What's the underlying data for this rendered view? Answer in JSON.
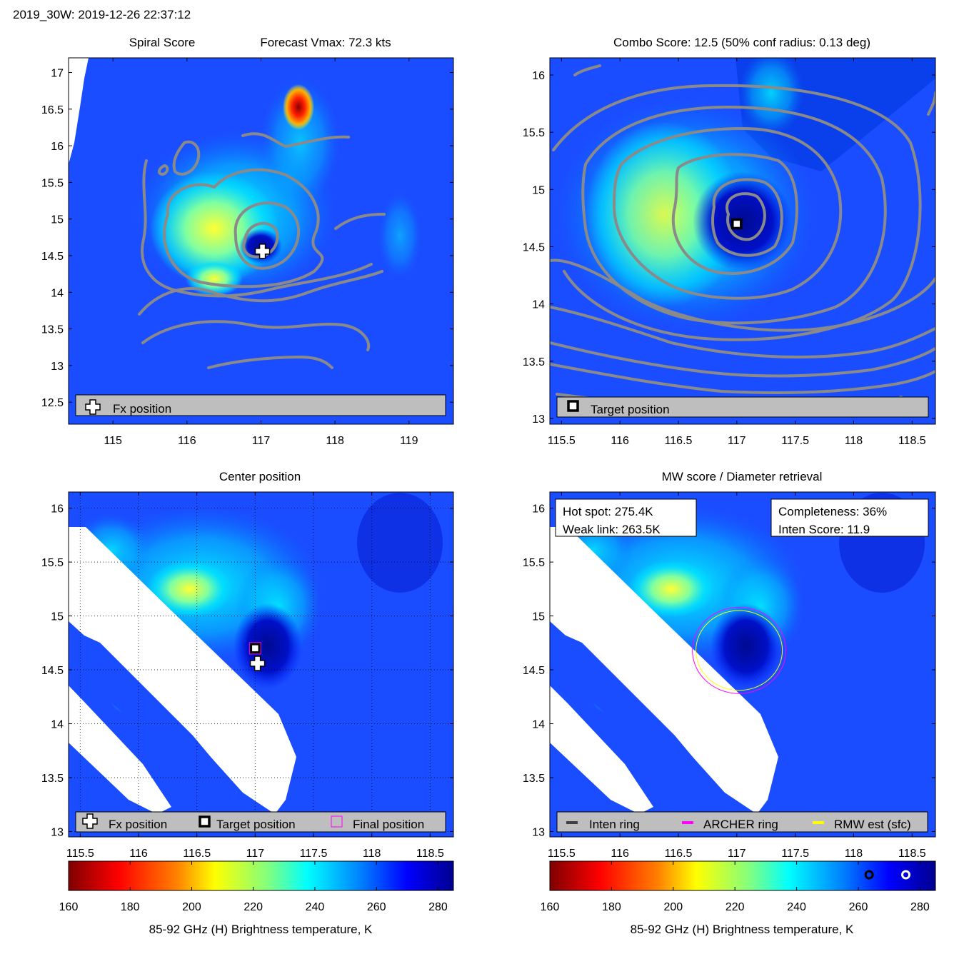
{
  "header": "2019_30W: 2019-12-26 22:37:12",
  "colors": {
    "colormap": [
      "#7f0000",
      "#ff0000",
      "#ff8000",
      "#ffff00",
      "#80ff80",
      "#00ffff",
      "#0080ff",
      "#0000ff",
      "#00008f"
    ],
    "background_field": "#1a4dff",
    "contour": "#8a8a8a",
    "legend_bg": "#bebebe",
    "archer_ring": "#ff00ff",
    "rmw_ring": "#ffff00",
    "inten_ring": "#404040"
  },
  "panels": {
    "spiral": {
      "title_left": "Spiral Score",
      "title_right": "Forecast Vmax: 72.3 kts",
      "legend": [
        "Fx position"
      ]
    },
    "combo": {
      "title": "Combo Score: 12.5  (50% conf radius: 0.13 deg)",
      "legend": [
        "Target position"
      ]
    },
    "center": {
      "title": "Center position",
      "legend": [
        "Fx position",
        "Target position",
        "Final position"
      ]
    },
    "mw": {
      "title": "MW score / Diameter retrieval",
      "hot_spot": "Hot spot: 275.4K",
      "weak_link": "Weak link: 263.5K",
      "completeness": "Completeness: 36%",
      "inten_score": "Inten Score: 11.9",
      "legend": [
        "Inten ring",
        "ARCHER ring",
        "RMW est (sfc)"
      ]
    }
  },
  "colorbars": {
    "label": "85-92 GHz (H) Brightness temperature, K"
  },
  "chart_data": [
    {
      "type": "heatmap",
      "name": "spiral",
      "xlim": [
        114.4,
        119.6
      ],
      "ylim": [
        12.2,
        17.2
      ],
      "xticks": [
        "115",
        "116",
        "117",
        "118",
        "119"
      ],
      "xtick_values": [
        115,
        116,
        117,
        118,
        119
      ],
      "yticks": [
        "12.5",
        "13",
        "13.5",
        "14",
        "14.5",
        "15",
        "15.5",
        "16",
        "16.5",
        "17"
      ],
      "ytick_values": [
        12.5,
        13,
        13.5,
        14,
        14.5,
        15,
        15.5,
        16,
        16.5,
        17
      ],
      "markers": [
        {
          "label": "Fx position",
          "x": 117.02,
          "y": 14.56
        }
      ]
    },
    {
      "type": "heatmap",
      "name": "combo",
      "xlim": [
        115.4,
        118.7
      ],
      "ylim": [
        12.95,
        16.15
      ],
      "xticks": [
        "115.5",
        "116",
        "116.5",
        "117",
        "117.5",
        "118",
        "118.5"
      ],
      "xtick_values": [
        115.5,
        116,
        116.5,
        117,
        117.5,
        118,
        118.5
      ],
      "yticks": [
        "13",
        "13.5",
        "14",
        "14.5",
        "15",
        "15.5",
        "16"
      ],
      "ytick_values": [
        13,
        13.5,
        14,
        14.5,
        15,
        15.5,
        16
      ],
      "markers": [
        {
          "label": "Target position",
          "x": 117.0,
          "y": 14.7
        }
      ]
    },
    {
      "type": "heatmap",
      "name": "center",
      "xlim": [
        115.4,
        118.7
      ],
      "ylim": [
        12.95,
        16.15
      ],
      "xticks": [
        "115.5",
        "116",
        "116.5",
        "117",
        "117.5",
        "118",
        "118.5"
      ],
      "xtick_values": [
        115.5,
        116,
        116.5,
        117,
        117.5,
        118,
        118.5
      ],
      "yticks": [
        "13",
        "13.5",
        "14",
        "14.5",
        "15",
        "15.5",
        "16"
      ],
      "ytick_values": [
        13,
        13.5,
        14,
        14.5,
        15,
        15.5,
        16
      ],
      "grid": true,
      "markers": [
        {
          "label": "Fx position",
          "x": 117.02,
          "y": 14.56
        },
        {
          "label": "Target position",
          "x": 117.0,
          "y": 14.7
        },
        {
          "label": "Final position",
          "x": 117.0,
          "y": 14.7
        }
      ]
    },
    {
      "type": "heatmap",
      "name": "mw",
      "xlim": [
        115.4,
        118.7
      ],
      "ylim": [
        12.95,
        16.15
      ],
      "xticks": [
        "115.5",
        "116",
        "116.5",
        "117",
        "117.5",
        "118",
        "118.5"
      ],
      "xtick_values": [
        115.5,
        116,
        116.5,
        117,
        117.5,
        118,
        118.5
      ],
      "yticks": [
        "13",
        "13.5",
        "14",
        "14.5",
        "15",
        "15.5",
        "16"
      ],
      "ytick_values": [
        13,
        13.5,
        14,
        14.5,
        15,
        15.5,
        16
      ],
      "rings": {
        "center_x": 117.02,
        "center_y": 14.68,
        "archer_radius_deg": 0.4,
        "rmw_radius_deg": 0.37
      }
    },
    {
      "type": "colorbar",
      "range": [
        160,
        285
      ],
      "ticks": [
        "160",
        "180",
        "200",
        "220",
        "240",
        "260",
        "280"
      ],
      "tick_values": [
        160,
        180,
        200,
        220,
        240,
        260,
        280
      ],
      "markers": [
        {
          "label": "weak link",
          "value": 263.5
        },
        {
          "label": "hot spot",
          "value": 275.4
        }
      ]
    }
  ]
}
